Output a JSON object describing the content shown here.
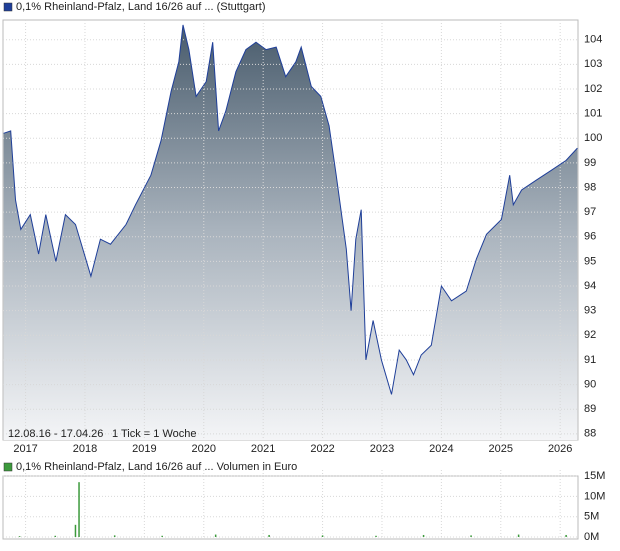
{
  "chart_data": [
    {
      "type": "area",
      "x": [
        2016.63,
        2016.75,
        2016.83,
        2016.92,
        2017.08,
        2017.22,
        2017.34,
        2017.51,
        2017.67,
        2017.84,
        2018.1,
        2018.26,
        2018.43,
        2018.69,
        2018.85,
        2019.11,
        2019.28,
        2019.45,
        2019.58,
        2019.65,
        2019.75,
        2019.87,
        2020.04,
        2020.15,
        2020.25,
        2020.37,
        2020.54,
        2020.71,
        2020.88,
        2021.05,
        2021.22,
        2021.38,
        2021.55,
        2021.64,
        2021.81,
        2021.97,
        2022.11,
        2022.23,
        2022.4,
        2022.48,
        2022.56,
        2022.65,
        2022.73,
        2022.85,
        2022.99,
        2023.16,
        2023.29,
        2023.41,
        2023.53,
        2023.66,
        2023.83,
        2024.0,
        2024.17,
        2024.42,
        2024.59,
        2024.76,
        2025.01,
        2025.15,
        2025.21,
        2025.35,
        2025.6,
        2025.85,
        2026.1,
        2026.29
      ],
      "series": [
        {
          "name": "0,1% Rheinland-Pfalz, Land 16/26 auf ... (Stuttgart)",
          "color": "#1f3f99",
          "values": [
            100.2,
            100.3,
            97.5,
            96.3,
            96.9,
            95.3,
            96.9,
            95.0,
            96.9,
            96.5,
            94.4,
            95.9,
            95.7,
            96.5,
            97.3,
            98.5,
            99.9,
            101.9,
            103.1,
            104.6,
            103.6,
            101.7,
            102.3,
            103.9,
            100.3,
            101.1,
            102.7,
            103.6,
            103.9,
            103.6,
            103.7,
            102.5,
            103.1,
            103.7,
            102.1,
            101.7,
            100.5,
            98.5,
            95.5,
            93.0,
            95.9,
            97.1,
            91.0,
            92.6,
            91.0,
            89.6,
            91.4,
            91.0,
            90.4,
            91.2,
            91.6,
            94.0,
            93.4,
            93.8,
            95.1,
            96.1,
            96.7,
            98.5,
            97.3,
            97.9,
            98.3,
            98.7,
            99.1,
            99.6
          ]
        }
      ],
      "xlim": [
        2016.62,
        2026.3
      ],
      "xticks": [
        2017,
        2018,
        2019,
        2020,
        2021,
        2022,
        2023,
        2024,
        2025,
        2026
      ],
      "ylim": [
        87.75,
        104.8
      ],
      "yticks": [
        88,
        89,
        90,
        91,
        92,
        93,
        94,
        95,
        96,
        97,
        98,
        99,
        100,
        101,
        102,
        103,
        104
      ],
      "grid": true,
      "period": "12.08.16 - 17.04.26",
      "tick_note": "1 Tick = 1 Woche"
    },
    {
      "type": "bar",
      "x": [
        2016.9,
        2017.5,
        2017.84,
        2017.9,
        2018.5,
        2019.3,
        2020.2,
        2021.1,
        2022.0,
        2022.9,
        2023.7,
        2024.5,
        2025.3,
        2026.1
      ],
      "series": [
        {
          "name": "0,1% Rheinland-Pfalz, Land 16/26 auf ... Volumen in Euro",
          "color": "#3c9a3c",
          "values": [
            200000,
            300000,
            3000000,
            13500000,
            400000,
            300000,
            600000,
            500000,
            400000,
            300000,
            500000,
            400000,
            600000,
            500000
          ]
        }
      ],
      "xlim": [
        2016.62,
        2026.3
      ],
      "xticks": [
        2017,
        2018,
        2019,
        2020,
        2021,
        2022,
        2023,
        2024,
        2025,
        2026
      ],
      "ylim": [
        0,
        16500000
      ],
      "yticks": [
        {
          "value": 0,
          "label": "0M"
        },
        {
          "value": 5000000,
          "label": "5M"
        },
        {
          "value": 10000000,
          "label": "10M"
        },
        {
          "value": 15000000,
          "label": "15M"
        }
      ],
      "grid": true
    }
  ]
}
